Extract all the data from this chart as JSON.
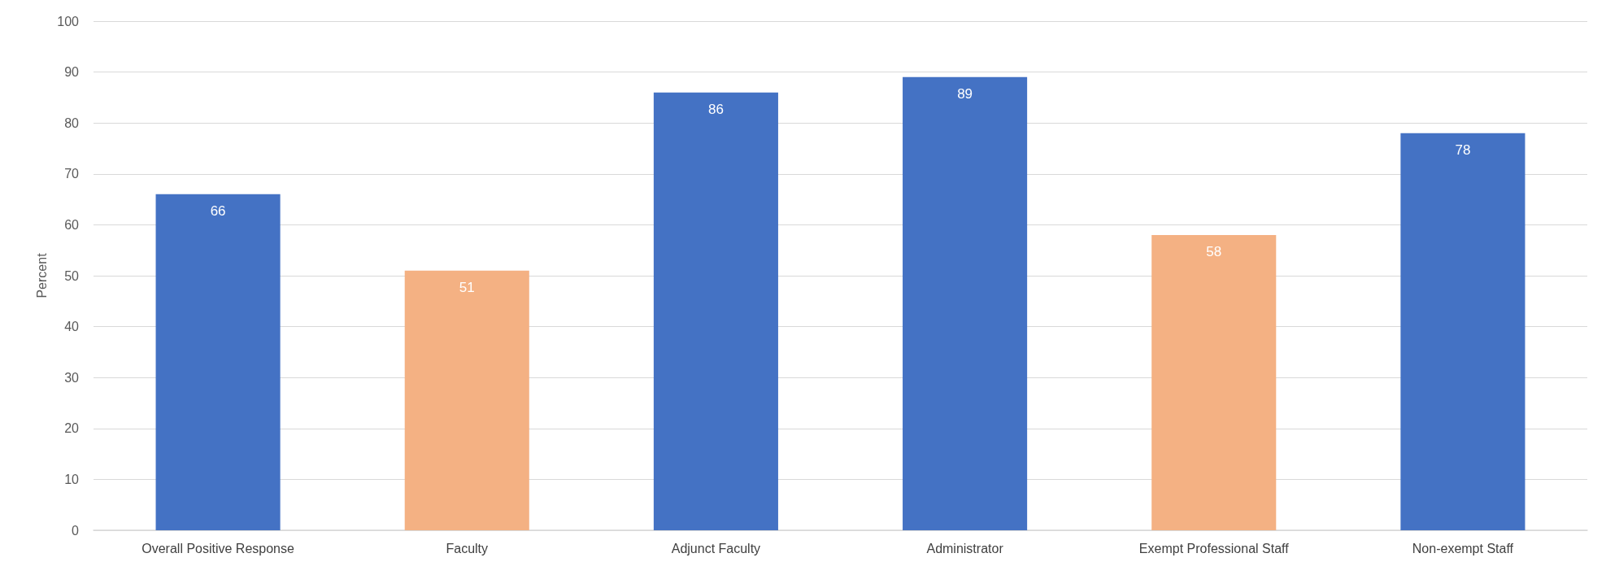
{
  "chart_data": {
    "type": "bar",
    "ylabel": "Percent",
    "categories": [
      "Overall Positive Response",
      "Faculty",
      "Adjunct Faculty",
      "Administrator",
      "Exempt Professional Staff",
      "Non-exempt Staff"
    ],
    "values": [
      66,
      51,
      86,
      89,
      58,
      78
    ],
    "colors": [
      "#4472c4",
      "#f4b183",
      "#4472c4",
      "#4472c4",
      "#f4b183",
      "#4472c4"
    ],
    "ylim": [
      0,
      100
    ],
    "yticks": [
      0,
      10,
      20,
      30,
      40,
      50,
      60,
      70,
      80,
      90,
      100
    ],
    "grid": "y",
    "data_labels": true
  }
}
